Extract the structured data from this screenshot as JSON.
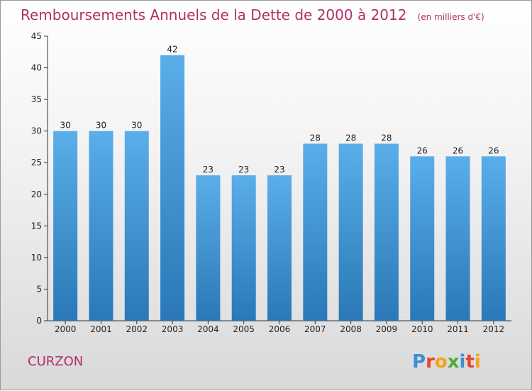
{
  "chart_data": {
    "type": "bar",
    "title": "Remboursements Annuels de la Dette de 2000 à 2012",
    "unit": "(en milliers d'€)",
    "categories": [
      "2000",
      "2001",
      "2002",
      "2003",
      "2004",
      "2005",
      "2006",
      "2007",
      "2008",
      "2009",
      "2010",
      "2011",
      "2012"
    ],
    "values": [
      30,
      30,
      30,
      42,
      23,
      23,
      23,
      28,
      28,
      28,
      26,
      26,
      26
    ],
    "ylim": [
      0,
      45
    ],
    "yticks": [
      0,
      5,
      10,
      15,
      20,
      25,
      30,
      35,
      40,
      45
    ],
    "xlabel": "",
    "ylabel": "",
    "grid": false,
    "bar_color_top": "#5aaee9",
    "bar_color_bottom": "#2a78b7"
  },
  "footer": {
    "city": "CURZON",
    "logo_letters": [
      "P",
      "r",
      "o",
      "x",
      "i",
      "t",
      "i"
    ],
    "logo_colors": [
      "#3b8fd6",
      "#e8442e",
      "#f2a319",
      "#4cae3a",
      "#3b8fd6",
      "#e8442e",
      "#f2a319"
    ]
  }
}
